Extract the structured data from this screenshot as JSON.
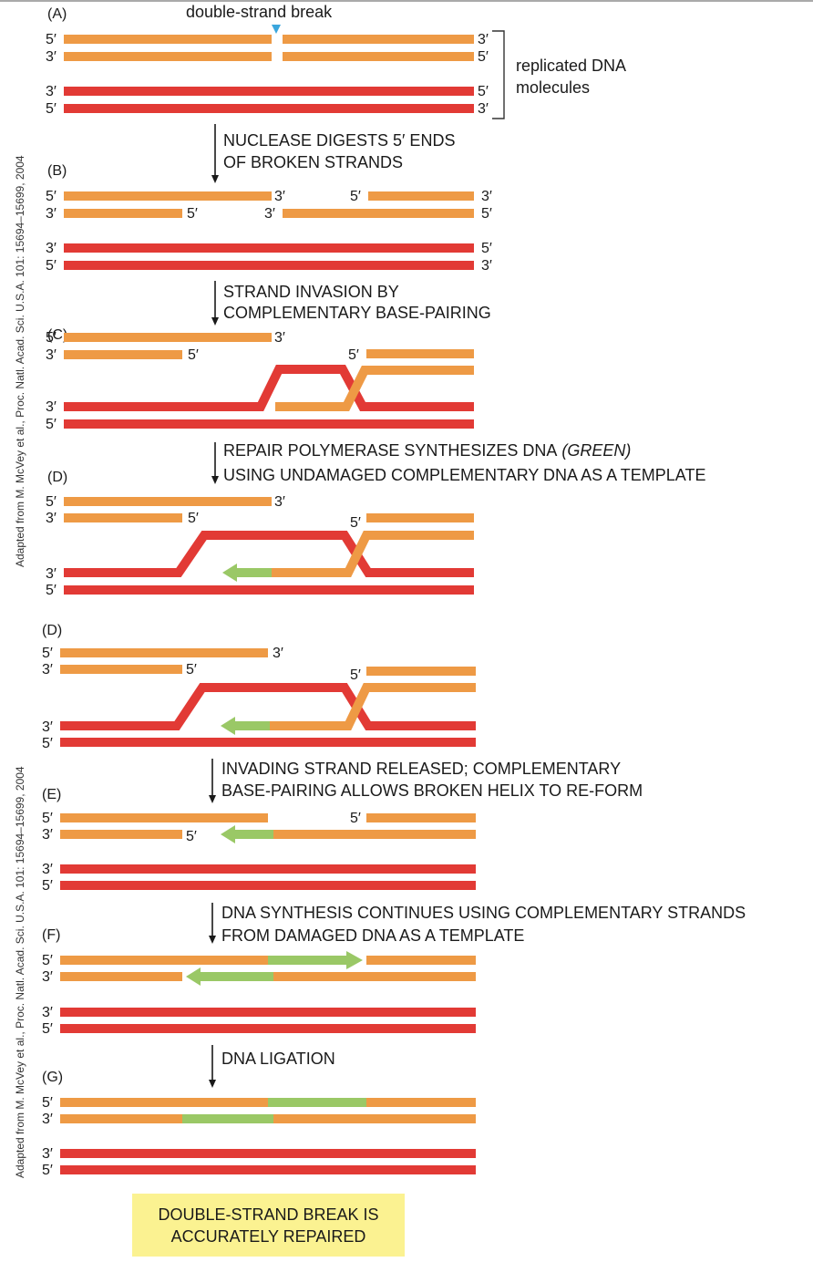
{
  "colors": {
    "orange": "#EE9A45",
    "red": "#E23A35",
    "green": "#9AC866",
    "arrow": "#1a1a1a",
    "break_marker": "#3AA6DD",
    "result_box": "#FBF291"
  },
  "top_label": "double-strand break",
  "replicated_label_line1": "replicated DNA",
  "replicated_label_line2": "molecules",
  "panels": {
    "A": "(A)",
    "B": "(B)",
    "C": "(C)",
    "D1": "(D)",
    "D2": "(D)",
    "E": "(E)",
    "F": "(F)",
    "G": "(G)"
  },
  "ends": {
    "five": "5′",
    "three": "3′"
  },
  "steps": {
    "s1": [
      "NUCLEASE DIGESTS 5′ ENDS",
      "OF BROKEN STRANDS"
    ],
    "s2": [
      "STRAND INVASION BY",
      "COMPLEMENTARY BASE-PAIRING"
    ],
    "s3_line1": "REPAIR POLYMERASE SYNTHESIZES DNA",
    "s3_line1_emph": "(GREEN)",
    "s3_line2": "USING UNDAMAGED COMPLEMENTARY DNA AS A TEMPLATE",
    "s4": [
      "INVADING STRAND RELEASED; COMPLEMENTARY",
      "BASE-PAIRING ALLOWS BROKEN HELIX TO RE-FORM"
    ],
    "s5": [
      "DNA SYNTHESIS CONTINUES USING COMPLEMENTARY STRANDS",
      "FROM DAMAGED DNA AS A TEMPLATE"
    ],
    "s6": [
      "DNA LIGATION"
    ]
  },
  "result": [
    "DOUBLE-STRAND BREAK IS",
    "ACCURATELY REPAIRED"
  ],
  "credit": "Adapted from M. McVey et al., Proc. Natl. Acad. Sci. U.S.A. 101: 15694–15699, 2004"
}
